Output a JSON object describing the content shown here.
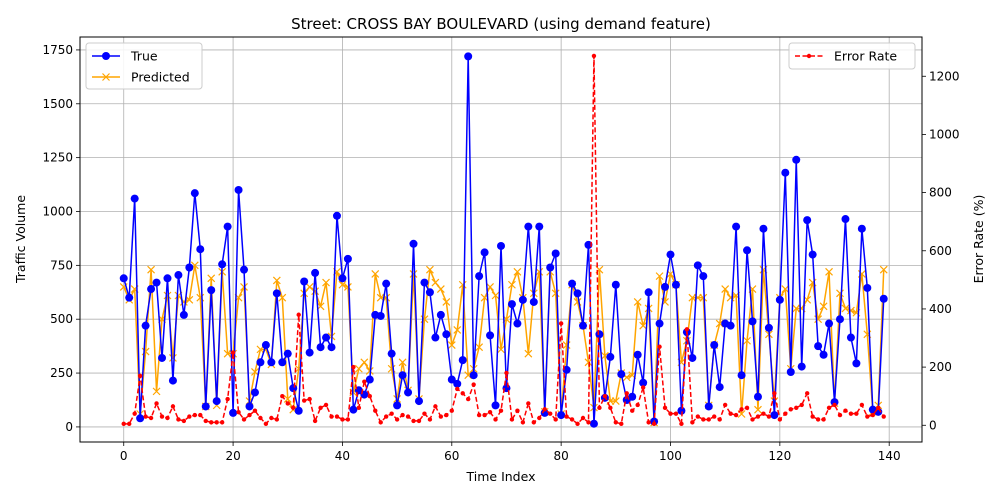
{
  "chart_data": {
    "type": "line",
    "title": "Street: CROSS BAY BOULEVARD (using demand feature)",
    "xlabel": "Time Index",
    "ylabel": "Traffic Volume",
    "y2label": "Error Rate (%)",
    "xlim": [
      -8,
      146
    ],
    "ylim": [
      -70,
      1810
    ],
    "y2lim": [
      -57.5,
      1335
    ],
    "xticks": [
      0,
      20,
      40,
      60,
      80,
      100,
      120,
      140
    ],
    "yticks": [
      0,
      250,
      500,
      750,
      1000,
      1250,
      1500,
      1750
    ],
    "y2ticks": [
      0,
      200,
      400,
      600,
      800,
      1000,
      1200
    ],
    "grid": true,
    "legend_left_position": "upper left",
    "legend_right_position": "upper right",
    "colors": {
      "true": "#0000ff",
      "predicted": "#ffa500",
      "error": "#ff0000"
    },
    "series": [
      {
        "name": "True",
        "axis": "left",
        "marker": "circle",
        "values": [
          690,
          600,
          1060,
          40,
          470,
          640,
          670,
          320,
          690,
          215,
          705,
          520,
          740,
          1085,
          825,
          95,
          635,
          120,
          755,
          930,
          65,
          1100,
          730,
          95,
          160,
          300,
          380,
          300,
          620,
          300,
          340,
          180,
          75,
          675,
          345,
          715,
          370,
          415,
          370,
          980,
          690,
          780,
          80,
          170,
          150,
          220,
          520,
          515,
          665,
          340,
          100,
          240,
          160,
          850,
          120,
          670,
          625,
          415,
          520,
          430,
          220,
          200,
          310,
          1720,
          240,
          700,
          810,
          425,
          100,
          840,
          180,
          570,
          480,
          590,
          930,
          580,
          930,
          65,
          740,
          805,
          55,
          265,
          665,
          620,
          470,
          845,
          15,
          430,
          135,
          325,
          660,
          245,
          125,
          140,
          335,
          205,
          625,
          25,
          480,
          650,
          800,
          660,
          75,
          440,
          320,
          750,
          700,
          95,
          380,
          185,
          480,
          470,
          930,
          240,
          820,
          490,
          140,
          920,
          460,
          55,
          590,
          1180,
          255,
          1240,
          280,
          960,
          800,
          375,
          335,
          480,
          115,
          500,
          965,
          415,
          295,
          920,
          645,
          80,
          70,
          595
        ]
      },
      {
        "name": "Predicted",
        "axis": "left",
        "marker": "x",
        "values": [
          650,
          590,
          640,
          60,
          350,
          730,
          165,
          500,
          610,
          320,
          610,
          580,
          590,
          750,
          600,
          95,
          690,
          100,
          720,
          340,
          340,
          600,
          650,
          120,
          255,
          360,
          360,
          290,
          680,
          600,
          130,
          80,
          270,
          620,
          650,
          630,
          560,
          670,
          420,
          720,
          660,
          650,
          160,
          270,
          300,
          260,
          710,
          600,
          600,
          270,
          130,
          300,
          170,
          710,
          130,
          500,
          730,
          670,
          640,
          580,
          380,
          450,
          660,
          240,
          270,
          370,
          600,
          650,
          610,
          360,
          500,
          660,
          720,
          600,
          340,
          620,
          720,
          70,
          720,
          620,
          60,
          380,
          660,
          580,
          470,
          300,
          90,
          730,
          330,
          120,
          120,
          250,
          230,
          240,
          580,
          470,
          550,
          20,
          700,
          580,
          710,
          660,
          300,
          400,
          600,
          600,
          600,
          100,
          380,
          480,
          640,
          600,
          610,
          60,
          400,
          640,
          80,
          730,
          430,
          120,
          600,
          640,
          270,
          550,
          550,
          590,
          670,
          500,
          560,
          720,
          110,
          620,
          550,
          540,
          530,
          710,
          430,
          70,
          100,
          730
        ]
      },
      {
        "name": "Error Rate",
        "axis": "right",
        "marker": "dot",
        "values": [
          5,
          5,
          40,
          170,
          30,
          25,
          75,
          30,
          25,
          65,
          20,
          15,
          30,
          35,
          35,
          15,
          10,
          10,
          10,
          90,
          250,
          45,
          20,
          35,
          50,
          25,
          5,
          25,
          20,
          100,
          75,
          60,
          380,
          85,
          90,
          15,
          60,
          70,
          30,
          30,
          20,
          20,
          200,
          60,
          150,
          100,
          50,
          10,
          30,
          40,
          20,
          35,
          30,
          15,
          15,
          40,
          20,
          65,
          30,
          35,
          50,
          125,
          110,
          90,
          140,
          35,
          35,
          45,
          20,
          50,
          180,
          20,
          50,
          10,
          75,
          10,
          25,
          55,
          40,
          20,
          350,
          30,
          20,
          5,
          25,
          10,
          1270,
          60,
          100,
          60,
          10,
          5,
          110,
          50,
          70,
          130,
          10,
          5,
          270,
          60,
          40,
          40,
          5,
          330,
          10,
          30,
          20,
          20,
          30,
          20,
          70,
          40,
          35,
          55,
          60,
          20,
          30,
          40,
          30,
          110,
          20,
          40,
          55,
          60,
          70,
          110,
          30,
          20,
          20,
          60,
          70,
          35,
          50,
          40,
          40,
          70,
          30,
          35,
          60,
          30
        ]
      }
    ]
  }
}
